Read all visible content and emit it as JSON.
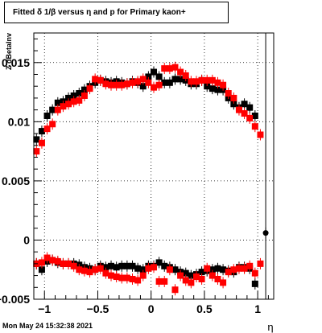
{
  "header": {
    "title": "Fitted δ 1/β versus η and p for Primary kaon+"
  },
  "footer": {
    "datestamp": "Mon May 24 15:32:38 2021"
  },
  "colors": {
    "series_black": "#000000",
    "series_red": "#ff0000"
  },
  "chart_data": {
    "type": "scatter",
    "title": "Fitted δ 1/β versus η and p for Primary kaon+",
    "xlabel": "η",
    "ylabel": "Z dBetaInv",
    "xlim": [
      -1.1,
      1.15
    ],
    "ylim": [
      -0.005,
      0.0175
    ],
    "x_ticks": [
      -1,
      -0.5,
      0,
      0.5,
      1
    ],
    "x_tick_labels": [
      "−1",
      "−0.5",
      "0",
      "0.5",
      "1"
    ],
    "y_ticks": [
      -0.005,
      0,
      0.005,
      0.01,
      0.015
    ],
    "y_tick_labels": [
      "−0.005",
      "0",
      "0.005",
      "0.01",
      "0.015"
    ],
    "grid": true,
    "series": [
      {
        "color": "#000000",
        "points": [
          {
            "x": -1.075,
            "y": 0.0085
          },
          {
            "x": -1.025,
            "y": 0.0092
          },
          {
            "x": -0.975,
            "y": 0.0105
          },
          {
            "x": -0.925,
            "y": 0.011
          },
          {
            "x": -0.875,
            "y": 0.0116
          },
          {
            "x": -0.825,
            "y": 0.0117
          },
          {
            "x": -0.775,
            "y": 0.012
          },
          {
            "x": -0.725,
            "y": 0.0122
          },
          {
            "x": -0.675,
            "y": 0.0124
          },
          {
            "x": -0.625,
            "y": 0.0127
          },
          {
            "x": -0.575,
            "y": 0.013
          },
          {
            "x": -0.525,
            "y": 0.0133
          },
          {
            "x": -0.475,
            "y": 0.0135
          },
          {
            "x": -0.425,
            "y": 0.0134
          },
          {
            "x": -0.375,
            "y": 0.0133
          },
          {
            "x": -0.325,
            "y": 0.0134
          },
          {
            "x": -0.275,
            "y": 0.0133
          },
          {
            "x": -0.225,
            "y": 0.0132
          },
          {
            "x": -0.175,
            "y": 0.0134
          },
          {
            "x": -0.125,
            "y": 0.0133
          },
          {
            "x": -0.075,
            "y": 0.013
          },
          {
            "x": -0.025,
            "y": 0.0138
          },
          {
            "x": 0.025,
            "y": 0.0142
          },
          {
            "x": 0.075,
            "y": 0.0138
          },
          {
            "x": 0.125,
            "y": 0.0133
          },
          {
            "x": 0.175,
            "y": 0.0133
          },
          {
            "x": 0.225,
            "y": 0.0136
          },
          {
            "x": 0.275,
            "y": 0.0136
          },
          {
            "x": 0.325,
            "y": 0.0135
          },
          {
            "x": 0.375,
            "y": 0.0132
          },
          {
            "x": 0.425,
            "y": 0.0132
          },
          {
            "x": 0.475,
            "y": 0.0135
          },
          {
            "x": 0.525,
            "y": 0.013
          },
          {
            "x": 0.575,
            "y": 0.0128
          },
          {
            "x": 0.625,
            "y": 0.0127
          },
          {
            "x": 0.675,
            "y": 0.0127
          },
          {
            "x": 0.725,
            "y": 0.012
          },
          {
            "x": 0.775,
            "y": 0.0115
          },
          {
            "x": 0.825,
            "y": 0.0112
          },
          {
            "x": 0.875,
            "y": 0.0115
          },
          {
            "x": 0.925,
            "y": 0.0112
          },
          {
            "x": 0.975,
            "y": 0.0105
          },
          {
            "x": 1.075,
            "y": 0.0006
          },
          {
            "x": -1.075,
            "y": -0.002
          },
          {
            "x": -1.025,
            "y": -0.0025
          },
          {
            "x": -0.975,
            "y": -0.0018
          },
          {
            "x": -0.925,
            "y": -0.0017
          },
          {
            "x": -0.875,
            "y": -0.0019
          },
          {
            "x": -0.825,
            "y": -0.002
          },
          {
            "x": -0.775,
            "y": -0.002
          },
          {
            "x": -0.725,
            "y": -0.002
          },
          {
            "x": -0.675,
            "y": -0.0021
          },
          {
            "x": -0.625,
            "y": -0.0023
          },
          {
            "x": -0.575,
            "y": -0.0024
          },
          {
            "x": -0.525,
            "y": -0.0025
          },
          {
            "x": -0.475,
            "y": -0.0022
          },
          {
            "x": -0.425,
            "y": -0.0023
          },
          {
            "x": -0.375,
            "y": -0.0022
          },
          {
            "x": -0.325,
            "y": -0.0023
          },
          {
            "x": -0.275,
            "y": -0.0022
          },
          {
            "x": -0.225,
            "y": -0.0022
          },
          {
            "x": -0.175,
            "y": -0.0022
          },
          {
            "x": -0.125,
            "y": -0.0024
          },
          {
            "x": -0.075,
            "y": -0.0025
          },
          {
            "x": -0.025,
            "y": -0.0022
          },
          {
            "x": 0.025,
            "y": -0.0022
          },
          {
            "x": 0.075,
            "y": -0.0019
          },
          {
            "x": 0.125,
            "y": -0.0022
          },
          {
            "x": 0.175,
            "y": -0.0023
          },
          {
            "x": 0.225,
            "y": -0.0025
          },
          {
            "x": 0.275,
            "y": -0.0027
          },
          {
            "x": 0.325,
            "y": -0.0028
          },
          {
            "x": 0.375,
            "y": -0.003
          },
          {
            "x": 0.425,
            "y": -0.0029
          },
          {
            "x": 0.475,
            "y": -0.0027
          },
          {
            "x": 0.525,
            "y": -0.0026
          },
          {
            "x": 0.575,
            "y": -0.0025
          },
          {
            "x": 0.625,
            "y": -0.0024
          },
          {
            "x": 0.675,
            "y": -0.0025
          },
          {
            "x": 0.725,
            "y": -0.0026
          },
          {
            "x": 0.775,
            "y": -0.0027
          },
          {
            "x": 0.825,
            "y": -0.0023
          },
          {
            "x": 0.875,
            "y": -0.0023
          },
          {
            "x": 0.925,
            "y": -0.0024
          },
          {
            "x": 0.975,
            "y": -0.0037
          }
        ]
      },
      {
        "color": "#ff0000",
        "points": [
          {
            "x": -1.075,
            "y": 0.0075
          },
          {
            "x": -1.025,
            "y": 0.0082
          },
          {
            "x": -0.975,
            "y": 0.0094
          },
          {
            "x": -0.925,
            "y": 0.0098
          },
          {
            "x": -0.875,
            "y": 0.011
          },
          {
            "x": -0.825,
            "y": 0.0113
          },
          {
            "x": -0.775,
            "y": 0.0115
          },
          {
            "x": -0.725,
            "y": 0.0117
          },
          {
            "x": -0.675,
            "y": 0.0118
          },
          {
            "x": -0.625,
            "y": 0.0122
          },
          {
            "x": -0.575,
            "y": 0.0128
          },
          {
            "x": -0.525,
            "y": 0.0136
          },
          {
            "x": -0.475,
            "y": 0.0135
          },
          {
            "x": -0.425,
            "y": 0.0132
          },
          {
            "x": -0.375,
            "y": 0.0131
          },
          {
            "x": -0.325,
            "y": 0.0131
          },
          {
            "x": -0.275,
            "y": 0.0131
          },
          {
            "x": -0.225,
            "y": 0.0132
          },
          {
            "x": -0.175,
            "y": 0.0133
          },
          {
            "x": -0.125,
            "y": 0.0134
          },
          {
            "x": -0.075,
            "y": 0.0136
          },
          {
            "x": -0.025,
            "y": 0.0133
          },
          {
            "x": 0.025,
            "y": 0.0129
          },
          {
            "x": 0.075,
            "y": 0.0131
          },
          {
            "x": 0.125,
            "y": 0.0145
          },
          {
            "x": 0.175,
            "y": 0.0145
          },
          {
            "x": 0.225,
            "y": 0.0146
          },
          {
            "x": 0.275,
            "y": 0.0142
          },
          {
            "x": 0.325,
            "y": 0.0139
          },
          {
            "x": 0.375,
            "y": 0.0134
          },
          {
            "x": 0.425,
            "y": 0.0134
          },
          {
            "x": 0.475,
            "y": 0.0135
          },
          {
            "x": 0.525,
            "y": 0.0135
          },
          {
            "x": 0.575,
            "y": 0.0135
          },
          {
            "x": 0.625,
            "y": 0.0133
          },
          {
            "x": 0.675,
            "y": 0.0131
          },
          {
            "x": 0.725,
            "y": 0.0124
          },
          {
            "x": 0.775,
            "y": 0.012
          },
          {
            "x": 0.825,
            "y": 0.011
          },
          {
            "x": 0.875,
            "y": 0.0107
          },
          {
            "x": 0.925,
            "y": 0.0103
          },
          {
            "x": 0.975,
            "y": 0.0096
          },
          {
            "x": 1.025,
            "y": 0.0089
          },
          {
            "x": -1.075,
            "y": -0.002
          },
          {
            "x": -1.025,
            "y": -0.0019
          },
          {
            "x": -0.975,
            "y": -0.0015
          },
          {
            "x": -0.925,
            "y": -0.0017
          },
          {
            "x": -0.875,
            "y": -0.0018
          },
          {
            "x": -0.825,
            "y": -0.002
          },
          {
            "x": -0.775,
            "y": -0.002
          },
          {
            "x": -0.725,
            "y": -0.0022
          },
          {
            "x": -0.675,
            "y": -0.0025
          },
          {
            "x": -0.625,
            "y": -0.0026
          },
          {
            "x": -0.575,
            "y": -0.0027
          },
          {
            "x": -0.525,
            "y": -0.0025
          },
          {
            "x": -0.475,
            "y": -0.0024
          },
          {
            "x": -0.425,
            "y": -0.0028
          },
          {
            "x": -0.375,
            "y": -0.003
          },
          {
            "x": -0.325,
            "y": -0.0031
          },
          {
            "x": -0.275,
            "y": -0.0032
          },
          {
            "x": -0.225,
            "y": -0.0032
          },
          {
            "x": -0.175,
            "y": -0.0033
          },
          {
            "x": -0.125,
            "y": -0.0034
          },
          {
            "x": -0.075,
            "y": -0.003
          },
          {
            "x": -0.025,
            "y": -0.0024
          },
          {
            "x": 0.025,
            "y": -0.0023
          },
          {
            "x": 0.075,
            "y": -0.0035
          },
          {
            "x": 0.125,
            "y": -0.0035
          },
          {
            "x": 0.175,
            "y": -0.0025
          },
          {
            "x": 0.225,
            "y": -0.0042
          },
          {
            "x": 0.275,
            "y": -0.003
          },
          {
            "x": 0.325,
            "y": -0.0034
          },
          {
            "x": 0.375,
            "y": -0.0036
          },
          {
            "x": 0.425,
            "y": -0.0031
          },
          {
            "x": 0.475,
            "y": -0.0033
          },
          {
            "x": 0.525,
            "y": -0.0024
          },
          {
            "x": 0.575,
            "y": -0.003
          },
          {
            "x": 0.625,
            "y": -0.0033
          },
          {
            "x": 0.675,
            "y": -0.0036
          },
          {
            "x": 0.725,
            "y": -0.0027
          },
          {
            "x": 0.775,
            "y": -0.0025
          },
          {
            "x": 0.825,
            "y": -0.0024
          },
          {
            "x": 0.875,
            "y": -0.0024
          },
          {
            "x": 0.925,
            "y": -0.0022
          },
          {
            "x": 0.975,
            "y": -0.0028
          },
          {
            "x": 1.025,
            "y": -0.002
          }
        ]
      }
    ]
  }
}
